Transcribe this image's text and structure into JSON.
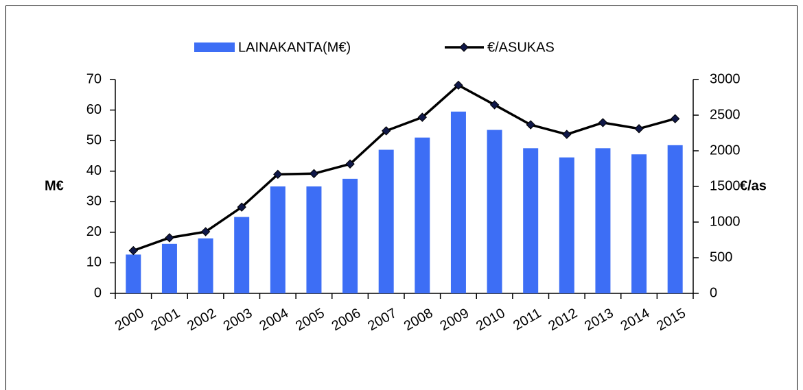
{
  "chart_data": {
    "type": "bar-line",
    "categories": [
      "2000",
      "2001",
      "2002",
      "2003",
      "2004",
      "2005",
      "2006",
      "2007",
      "2008",
      "2009",
      "2010",
      "2011",
      "2012",
      "2013",
      "2014",
      "2015"
    ],
    "series": [
      {
        "name": "LAINAKANTA(M€)",
        "type": "bar",
        "color": "#3d6ef5",
        "axis": "y",
        "values": [
          12.7,
          16.2,
          18,
          25,
          35,
          35,
          37.5,
          47,
          51,
          59.5,
          53.5,
          47.5,
          44.5,
          47.5,
          45.5,
          48.5
        ]
      },
      {
        "name": "€/ASUKAS",
        "type": "line",
        "color": "#000000",
        "axis": "y2",
        "values": [
          600,
          780,
          865,
          1210,
          1670,
          1680,
          1815,
          2280,
          2470,
          2920,
          2645,
          2365,
          2230,
          2395,
          2310,
          2450
        ]
      }
    ],
    "ylabel": "M€",
    "y2label": "€/as",
    "ylim": [
      0,
      70
    ],
    "yticks": [
      0,
      10,
      20,
      30,
      40,
      50,
      60,
      70
    ],
    "y2lim": [
      0,
      3000
    ],
    "y2ticks": [
      0,
      500,
      1000,
      1500,
      2000,
      2500,
      3000
    ],
    "legend": "top",
    "grid": false
  }
}
